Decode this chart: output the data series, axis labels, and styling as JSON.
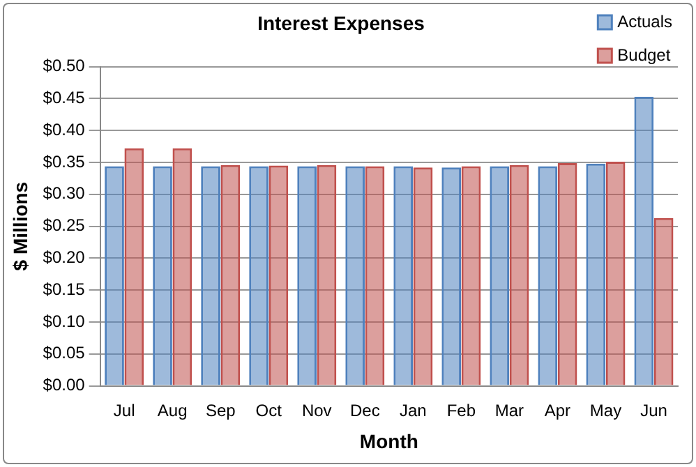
{
  "chart_data": {
    "type": "bar",
    "title": "Interest Expenses",
    "xlabel": "Month",
    "ylabel": "$ Millions",
    "categories": [
      "Jul",
      "Aug",
      "Sep",
      "Oct",
      "Nov",
      "Dec",
      "Jan",
      "Feb",
      "Mar",
      "Apr",
      "May",
      "Jun"
    ],
    "series": [
      {
        "name": "Actuals",
        "color": "#4f81bd",
        "values": [
          0.344,
          0.344,
          0.344,
          0.344,
          0.344,
          0.344,
          0.344,
          0.342,
          0.344,
          0.344,
          0.348,
          0.453
        ]
      },
      {
        "name": "Budget",
        "color": "#c0504d",
        "values": [
          0.372,
          0.372,
          0.346,
          0.345,
          0.346,
          0.344,
          0.342,
          0.344,
          0.346,
          0.349,
          0.351,
          0.263
        ]
      }
    ],
    "ylim": [
      0,
      0.5
    ],
    "yticks": [
      {
        "value": 0,
        "label": "$0.00"
      },
      {
        "value": 0.05,
        "label": "$0.05"
      },
      {
        "value": 0.1,
        "label": "$0.10"
      },
      {
        "value": 0.15,
        "label": "$0.15"
      },
      {
        "value": 0.2,
        "label": "$0.20"
      },
      {
        "value": 0.25,
        "label": "$0.25"
      },
      {
        "value": 0.3,
        "label": "$0.30"
      },
      {
        "value": 0.35,
        "label": "$0.35"
      },
      {
        "value": 0.4,
        "label": "$0.40"
      },
      {
        "value": 0.45,
        "label": "$0.45"
      },
      {
        "value": 0.5,
        "label": "$0.50"
      }
    ],
    "grid": "y",
    "legend": "top right"
  }
}
